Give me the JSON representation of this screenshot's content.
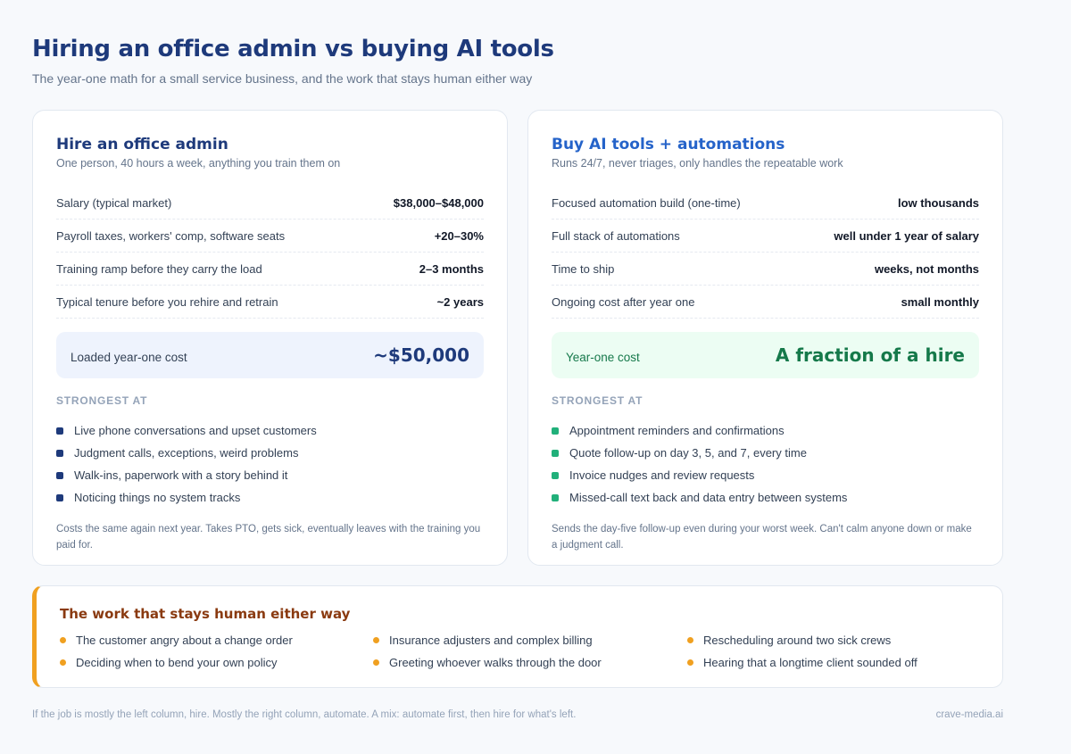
{
  "header": {
    "title": "Hiring an office admin vs buying AI tools",
    "subtitle": "The year-one math for a small service business, and the work that stays human either way"
  },
  "left_card": {
    "title": "Hire an office admin",
    "subtitle": "One person, 40 hours a week, anything you train them on",
    "rows": [
      {
        "label": "Salary (typical market)",
        "value": "$38,000–$48,000"
      },
      {
        "label": "Payroll taxes, workers' comp, software seats",
        "value": "+20–30%"
      },
      {
        "label": "Training ramp before they carry the load",
        "value": "2–3 months"
      },
      {
        "label": "Typical tenure before you rehire and retrain",
        "value": "~2 years"
      }
    ],
    "total_label": "Loaded year-one cost",
    "total_value": "~$50,000",
    "strongest_label": "STRONGEST AT",
    "strongest": [
      "Live phone conversations and upset customers",
      "Judgment calls, exceptions, weird problems",
      "Walk-ins, paperwork with a story behind it",
      "Noticing things no system tracks"
    ],
    "note": "Costs the same again next year. Takes PTO, gets sick, eventually leaves with the training you paid for."
  },
  "right_card": {
    "title": "Buy AI tools + automations",
    "subtitle": "Runs 24/7, never triages, only handles the repeatable work",
    "rows": [
      {
        "label": "Focused automation build (one-time)",
        "value": "low thousands"
      },
      {
        "label": "Full stack of automations",
        "value": "well under 1 year of salary"
      },
      {
        "label": "Time to ship",
        "value": "weeks, not months"
      },
      {
        "label": "Ongoing cost after year one",
        "value": "small monthly"
      }
    ],
    "total_label": "Year-one cost",
    "total_value": "A fraction of a hire",
    "strongest_label": "STRONGEST AT",
    "strongest": [
      "Appointment reminders and confirmations",
      "Quote follow-up on day 3, 5, and 7, every time",
      "Invoice nudges and review requests",
      "Missed-call text back and data entry between systems"
    ],
    "note": "Sends the day-five follow-up even during your worst week. Can't calm anyone down or make a judgment call."
  },
  "human": {
    "title": "The work that stays human either way",
    "items": [
      "The customer angry about a change order",
      "Insurance adjusters and complex billing",
      "Rescheduling around two sick crews",
      "Deciding when to bend your own policy",
      "Greeting whoever walks through the door",
      "Hearing that a longtime client sounded off"
    ]
  },
  "footer": {
    "left": "If the job is mostly the left column, hire. Mostly the right column, automate. A mix: automate first, then hire for what's left.",
    "right": "crave-media.ai"
  },
  "colors": {
    "navy": "#1e3a7b",
    "blue": "#2563c9",
    "green": "#15794a",
    "amber": "#f0a020",
    "brown": "#8a3a10"
  }
}
